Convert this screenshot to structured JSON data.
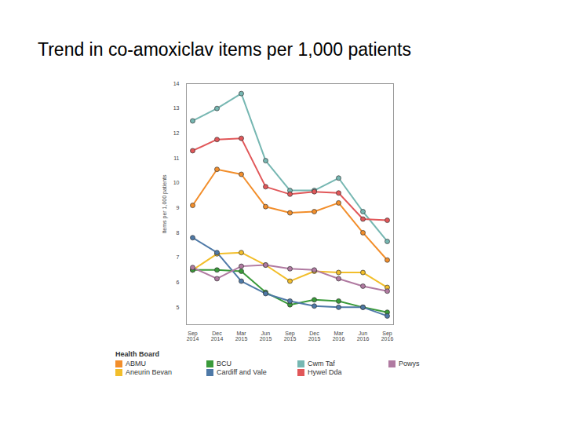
{
  "chart_data": {
    "type": "line",
    "title": "Trend in co-amoxiclav items per 1,000 patients",
    "y_label": "Items per 1,000 patients",
    "legend_title": "Health Board",
    "categories": [
      "Sep 2014",
      "Dec 2014",
      "Mar 2015",
      "Jun 2015",
      "Sep 2015",
      "Dec 2015",
      "Mar 2016",
      "Jun 2016",
      "Sep 2016"
    ],
    "series": [
      {
        "name": "ABMU",
        "color": "#f28e2b",
        "values": [
          9.1,
          10.55,
          10.35,
          9.05,
          8.8,
          8.85,
          9.2,
          8.0,
          6.9
        ]
      },
      {
        "name": "Aneurin Bevan",
        "color": "#f2be2b",
        "values": [
          6.5,
          7.15,
          7.2,
          6.7,
          6.05,
          6.45,
          6.4,
          6.4,
          5.8
        ]
      },
      {
        "name": "BCU",
        "color": "#3a9a3a",
        "values": [
          6.5,
          6.5,
          6.45,
          5.6,
          5.1,
          5.3,
          5.25,
          5.0,
          4.8
        ]
      },
      {
        "name": "Cardiff and Vale",
        "color": "#4e79a7",
        "values": [
          7.8,
          7.2,
          6.05,
          5.55,
          5.25,
          5.05,
          5.0,
          5.0,
          4.65
        ]
      },
      {
        "name": "Cwm Taf",
        "color": "#76b7b2",
        "values": [
          12.5,
          13.0,
          13.6,
          10.9,
          9.7,
          9.7,
          10.2,
          8.85,
          7.65
        ]
      },
      {
        "name": "Hywel Dda",
        "color": "#e15759",
        "values": [
          11.3,
          11.75,
          11.8,
          9.85,
          9.55,
          9.65,
          9.6,
          8.55,
          8.5
        ]
      },
      {
        "name": "Powys",
        "color": "#b07aa1",
        "values": [
          6.6,
          6.15,
          6.65,
          6.7,
          6.55,
          6.5,
          6.15,
          5.85,
          5.65
        ]
      }
    ],
    "ylim": [
      4.3,
      14
    ],
    "yticks": [
      5,
      6,
      7,
      8,
      9,
      10,
      11,
      12,
      13,
      14
    ],
    "grid": false,
    "legend": "bottom",
    "marker": "circle"
  }
}
